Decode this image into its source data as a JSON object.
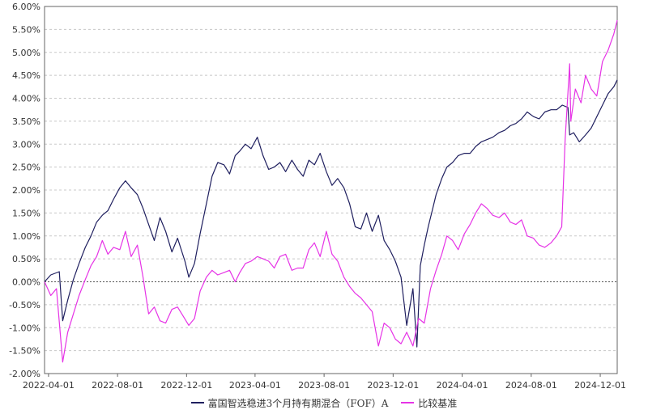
{
  "colors": {
    "fund": "#1f1f5f",
    "benchmark": "#e633e6",
    "grid": "#c8c8c8",
    "zero": "#555555",
    "axis": "#666666"
  },
  "legend": {
    "fund_label": "富国智选稳进3个月持有期混合（FOF）A",
    "benchmark_label": "比较基准"
  },
  "chart_data": {
    "type": "line",
    "title": "",
    "xlabel": "",
    "ylabel": "",
    "ylim": [
      -2.0,
      6.0
    ],
    "y_ticks": [
      "-2.00%",
      "-1.50%",
      "-1.00%",
      "-0.50%",
      "0.00%",
      "0.50%",
      "1.00%",
      "1.50%",
      "2.00%",
      "2.50%",
      "3.00%",
      "3.50%",
      "4.00%",
      "4.50%",
      "5.00%",
      "5.50%",
      "6.00%"
    ],
    "y_tick_values": [
      -2.0,
      -1.5,
      -1.0,
      -0.5,
      0.0,
      0.5,
      1.0,
      1.5,
      2.0,
      2.5,
      3.0,
      3.5,
      4.0,
      4.5,
      5.0,
      5.5,
      6.0
    ],
    "x_ticks": [
      "2022-04-01",
      "2022-08-01",
      "2022-12-01",
      "2023-04-01",
      "2023-08-01",
      "2023-12-01",
      "2024-04-01",
      "2024-08-01",
      "2024-12-01"
    ],
    "xlim": [
      "2022-03-25",
      "2024-12-31"
    ],
    "grid": true,
    "legend_position": "bottom",
    "series": [
      {
        "name": "富国智选稳进3个月持有期混合（FOF）A",
        "x": [
          "2022-03-25",
          "2022-04-05",
          "2022-04-20",
          "2022-04-26",
          "2022-05-05",
          "2022-05-15",
          "2022-05-25",
          "2022-06-05",
          "2022-06-15",
          "2022-06-25",
          "2022-07-05",
          "2022-07-15",
          "2022-07-25",
          "2022-08-05",
          "2022-08-15",
          "2022-08-25",
          "2022-09-05",
          "2022-09-15",
          "2022-09-25",
          "2022-10-05",
          "2022-10-15",
          "2022-10-25",
          "2022-11-05",
          "2022-11-15",
          "2022-11-28",
          "2022-12-05",
          "2022-12-15",
          "2022-12-25",
          "2023-01-05",
          "2023-01-15",
          "2023-01-25",
          "2023-02-05",
          "2023-02-15",
          "2023-02-25",
          "2023-03-05",
          "2023-03-15",
          "2023-03-25",
          "2023-04-05",
          "2023-04-15",
          "2023-04-25",
          "2023-05-05",
          "2023-05-15",
          "2023-05-25",
          "2023-06-05",
          "2023-06-15",
          "2023-06-25",
          "2023-07-05",
          "2023-07-15",
          "2023-07-25",
          "2023-08-05",
          "2023-08-15",
          "2023-08-25",
          "2023-09-05",
          "2023-09-15",
          "2023-09-25",
          "2023-10-05",
          "2023-10-15",
          "2023-10-25",
          "2023-11-05",
          "2023-11-15",
          "2023-11-25",
          "2023-12-05",
          "2023-12-15",
          "2023-12-25",
          "2024-01-05",
          "2024-01-12",
          "2024-01-18",
          "2024-01-25",
          "2024-02-01",
          "2024-02-08",
          "2024-02-15",
          "2024-02-25",
          "2024-03-05",
          "2024-03-15",
          "2024-03-25",
          "2024-04-05",
          "2024-04-15",
          "2024-04-25",
          "2024-05-05",
          "2024-05-15",
          "2024-05-25",
          "2024-06-05",
          "2024-06-15",
          "2024-06-25",
          "2024-07-05",
          "2024-07-15",
          "2024-07-25",
          "2024-08-05",
          "2024-08-15",
          "2024-08-25",
          "2024-09-05",
          "2024-09-15",
          "2024-09-25",
          "2024-10-05",
          "2024-10-08",
          "2024-10-15",
          "2024-10-25",
          "2024-11-05",
          "2024-11-15",
          "2024-11-25",
          "2024-12-05",
          "2024-12-15",
          "2024-12-25",
          "2024-12-31"
        ],
        "values": [
          0.0,
          0.15,
          0.22,
          -0.85,
          -0.4,
          0.05,
          0.4,
          0.75,
          1.0,
          1.3,
          1.45,
          1.55,
          1.8,
          2.05,
          2.2,
          2.05,
          1.9,
          1.6,
          1.25,
          0.9,
          1.4,
          1.1,
          0.65,
          0.95,
          0.45,
          0.1,
          0.4,
          1.05,
          1.7,
          2.3,
          2.6,
          2.55,
          2.35,
          2.75,
          2.85,
          3.0,
          2.9,
          3.15,
          2.75,
          2.45,
          2.5,
          2.6,
          2.4,
          2.65,
          2.45,
          2.3,
          2.65,
          2.55,
          2.8,
          2.4,
          2.1,
          2.25,
          2.05,
          1.7,
          1.2,
          1.15,
          1.5,
          1.1,
          1.45,
          0.9,
          0.7,
          0.45,
          0.1,
          -0.95,
          -0.15,
          -1.42,
          0.35,
          0.8,
          1.2,
          1.55,
          1.9,
          2.25,
          2.5,
          2.6,
          2.75,
          2.8,
          2.8,
          2.95,
          3.05,
          3.1,
          3.15,
          3.25,
          3.3,
          3.4,
          3.45,
          3.55,
          3.7,
          3.6,
          3.55,
          3.7,
          3.75,
          3.75,
          3.85,
          3.8,
          3.2,
          3.25,
          3.05,
          3.2,
          3.35,
          3.6,
          3.85,
          4.1,
          4.25,
          4.4
        ]
      },
      {
        "name": "比较基准",
        "x": [
          "2022-03-25",
          "2022-04-05",
          "2022-04-15",
          "2022-04-26",
          "2022-05-05",
          "2022-05-15",
          "2022-05-25",
          "2022-06-05",
          "2022-06-15",
          "2022-06-25",
          "2022-07-05",
          "2022-07-15",
          "2022-07-25",
          "2022-08-05",
          "2022-08-15",
          "2022-08-25",
          "2022-09-05",
          "2022-09-15",
          "2022-09-25",
          "2022-10-05",
          "2022-10-15",
          "2022-10-25",
          "2022-11-05",
          "2022-11-15",
          "2022-11-25",
          "2022-12-05",
          "2022-12-15",
          "2022-12-25",
          "2023-01-05",
          "2023-01-15",
          "2023-01-25",
          "2023-02-05",
          "2023-02-15",
          "2023-02-25",
          "2023-03-05",
          "2023-03-15",
          "2023-03-25",
          "2023-04-05",
          "2023-04-15",
          "2023-04-25",
          "2023-05-05",
          "2023-05-15",
          "2023-05-25",
          "2023-06-05",
          "2023-06-15",
          "2023-06-25",
          "2023-07-05",
          "2023-07-15",
          "2023-07-25",
          "2023-08-05",
          "2023-08-15",
          "2023-08-25",
          "2023-09-05",
          "2023-09-15",
          "2023-09-25",
          "2023-10-05",
          "2023-10-15",
          "2023-10-25",
          "2023-11-05",
          "2023-11-15",
          "2023-11-25",
          "2023-12-05",
          "2023-12-15",
          "2023-12-25",
          "2024-01-05",
          "2024-01-15",
          "2024-01-25",
          "2024-02-05",
          "2024-02-15",
          "2024-02-25",
          "2024-03-05",
          "2024-03-15",
          "2024-03-25",
          "2024-04-05",
          "2024-04-15",
          "2024-04-25",
          "2024-05-05",
          "2024-05-15",
          "2024-05-25",
          "2024-06-05",
          "2024-06-15",
          "2024-06-25",
          "2024-07-05",
          "2024-07-15",
          "2024-07-25",
          "2024-08-05",
          "2024-08-15",
          "2024-08-25",
          "2024-09-05",
          "2024-09-15",
          "2024-09-24",
          "2024-09-30",
          "2024-10-08",
          "2024-10-10",
          "2024-10-18",
          "2024-10-28",
          "2024-11-05",
          "2024-11-15",
          "2024-11-25",
          "2024-12-05",
          "2024-12-15",
          "2024-12-25",
          "2024-12-31"
        ],
        "values": [
          0.0,
          -0.3,
          -0.15,
          -1.75,
          -1.1,
          -0.7,
          -0.3,
          0.05,
          0.35,
          0.55,
          0.9,
          0.6,
          0.75,
          0.7,
          1.1,
          0.55,
          0.8,
          0.1,
          -0.7,
          -0.55,
          -0.85,
          -0.9,
          -0.6,
          -0.55,
          -0.75,
          -0.95,
          -0.8,
          -0.2,
          0.1,
          0.25,
          0.15,
          0.2,
          0.25,
          0.0,
          0.2,
          0.4,
          0.45,
          0.55,
          0.5,
          0.45,
          0.3,
          0.55,
          0.6,
          0.25,
          0.3,
          0.3,
          0.7,
          0.85,
          0.55,
          1.1,
          0.6,
          0.45,
          0.1,
          -0.1,
          -0.25,
          -0.35,
          -0.5,
          -0.65,
          -1.4,
          -0.9,
          -1.0,
          -1.25,
          -1.35,
          -1.1,
          -1.4,
          -0.8,
          -0.9,
          -0.15,
          0.25,
          0.6,
          1.0,
          0.9,
          0.7,
          1.05,
          1.25,
          1.5,
          1.7,
          1.6,
          1.45,
          1.4,
          1.5,
          1.3,
          1.25,
          1.35,
          1.0,
          0.95,
          0.8,
          0.75,
          0.85,
          1.0,
          1.2,
          3.1,
          4.75,
          3.5,
          4.2,
          3.9,
          4.5,
          4.2,
          4.05,
          4.8,
          5.05,
          5.4,
          5.7
        ]
      }
    ]
  }
}
